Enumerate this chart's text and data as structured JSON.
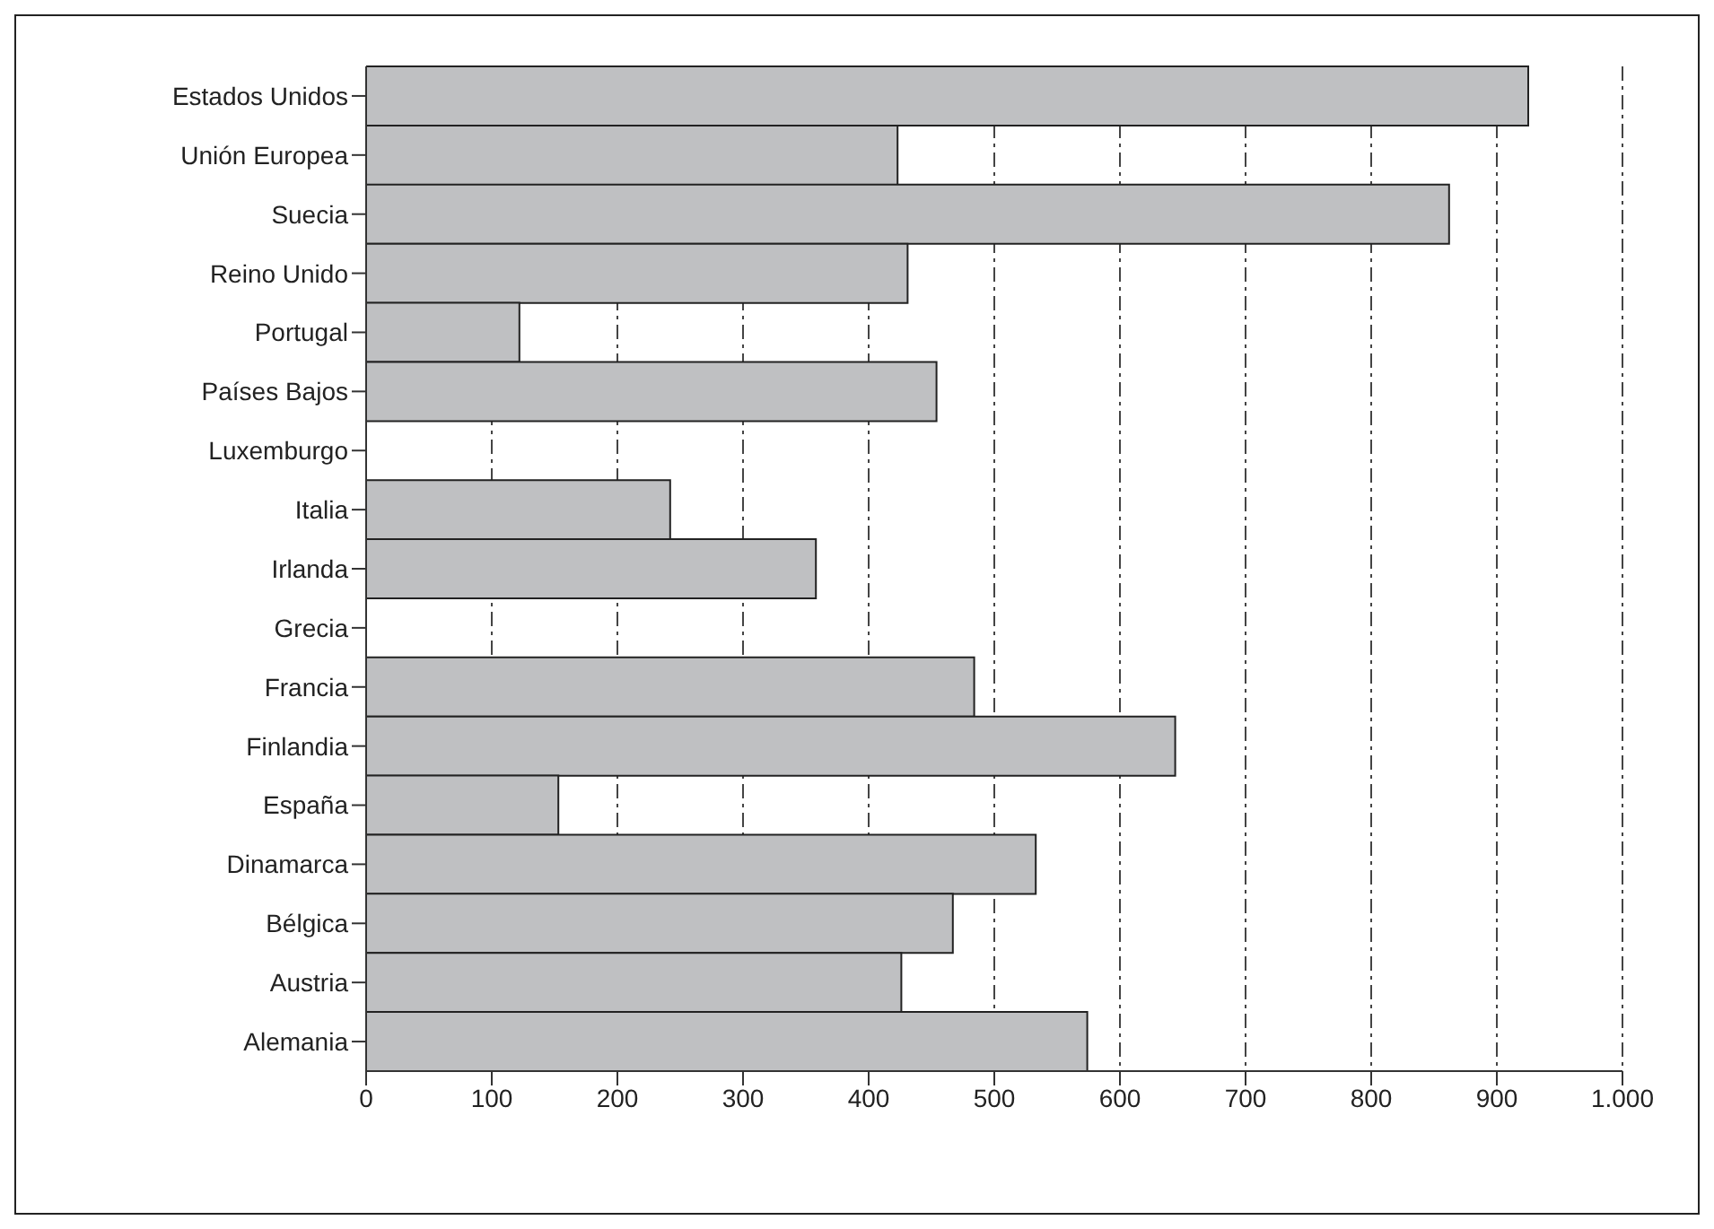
{
  "chart_data": {
    "type": "bar",
    "orientation": "horizontal",
    "categories": [
      "Estados Unidos",
      "Unión Europea",
      "Suecia",
      "Reino Unido",
      "Portugal",
      "Países Bajos",
      "Luxemburgo",
      "Italia",
      "Irlanda",
      "Grecia",
      "Francia",
      "Finlandia",
      "España",
      "Dinamarca",
      "Bélgica",
      "Austria",
      "Alemania"
    ],
    "values": [
      925,
      423,
      862,
      431,
      122,
      454,
      null,
      242,
      358,
      null,
      484,
      644,
      153,
      533,
      467,
      426,
      574
    ],
    "color": "#bfc0c2",
    "xlim": [
      0,
      1000
    ],
    "xticks": [
      0,
      100,
      200,
      300,
      400,
      500,
      600,
      700,
      800,
      900,
      {
        "value": 1000,
        "label": "1.000"
      }
    ],
    "grid": "x"
  }
}
